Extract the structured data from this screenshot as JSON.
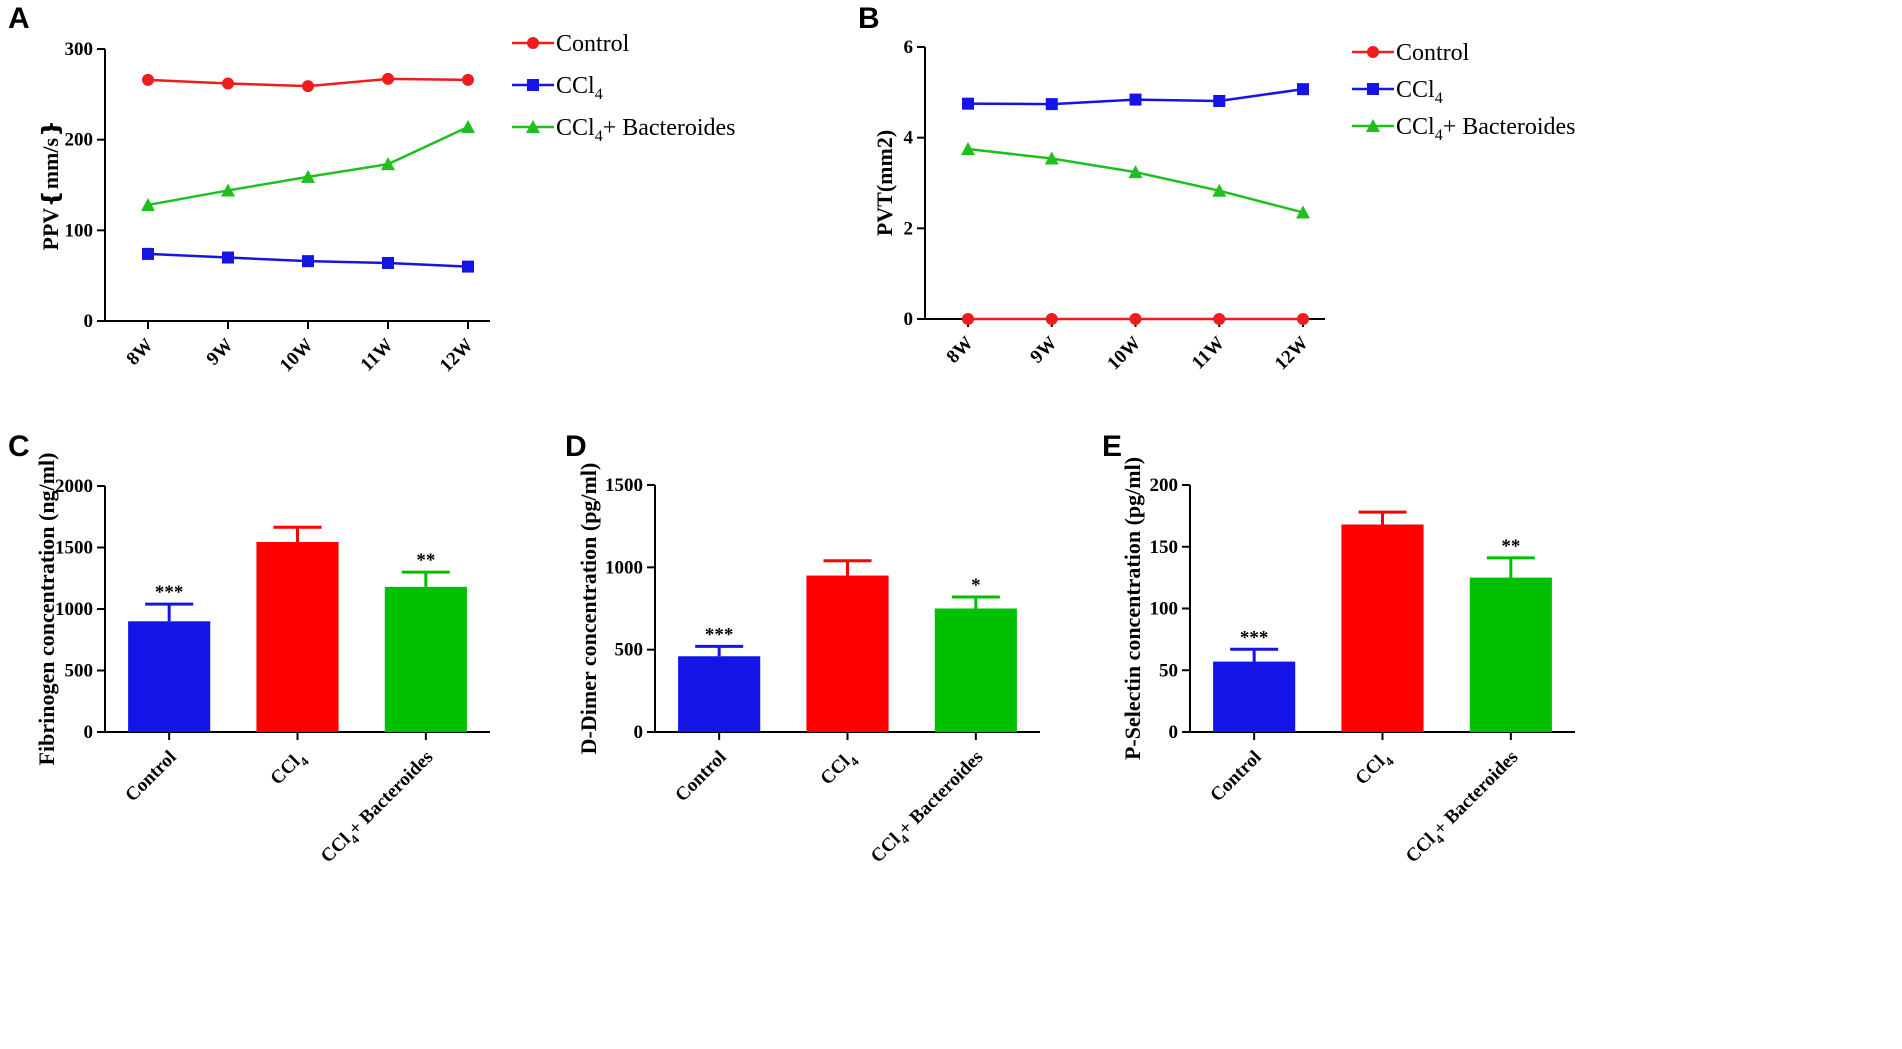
{
  "chart_data": [
    {
      "id": "A",
      "type": "line",
      "panel_label": "A",
      "ylabel": "PPV❴mm/s❵",
      "ylim": [
        0,
        300
      ],
      "yticks": [
        0,
        100,
        200,
        300
      ],
      "categories": [
        "8W",
        "9W",
        "10W",
        "11W",
        "12W"
      ],
      "series": [
        {
          "name": "Control",
          "name_main": "Control",
          "name_sub": "",
          "name_rest": "",
          "color": "#ee1c1c",
          "marker": "circle",
          "values": [
            266,
            262,
            259,
            267,
            266
          ]
        },
        {
          "name": "CCl4",
          "name_main": "CCl",
          "name_sub": "4",
          "name_rest": "",
          "color": "#1414e6",
          "marker": "square",
          "values": [
            74,
            70,
            66,
            64,
            60
          ]
        },
        {
          "name": "CCl4+ Bacteroides",
          "name_main": "CCl",
          "name_sub": "4",
          "name_rest": "+ Bacteroides",
          "color": "#1fbf1f",
          "marker": "triangle",
          "values": [
            128,
            144,
            159,
            173,
            214
          ]
        }
      ]
    },
    {
      "id": "B",
      "type": "line",
      "panel_label": "B",
      "ylabel": "PVT(mm2)",
      "ylim": [
        0,
        6
      ],
      "yticks": [
        0,
        2,
        4,
        6
      ],
      "categories": [
        "8W",
        "9W",
        "10W",
        "11W",
        "12W"
      ],
      "series": [
        {
          "name": "Control",
          "name_main": "Control",
          "name_sub": "",
          "name_rest": "",
          "color": "#ee1c1c",
          "marker": "circle",
          "values": [
            0,
            0,
            0,
            0,
            0
          ]
        },
        {
          "name": "CCl4",
          "name_main": "CCl",
          "name_sub": "4",
          "name_rest": "",
          "color": "#1414e6",
          "marker": "square",
          "values": [
            4.75,
            4.74,
            4.84,
            4.81,
            5.07
          ]
        },
        {
          "name": "CCl4+ Bacteroides",
          "name_main": "CCl",
          "name_sub": "4",
          "name_rest": "+ Bacteroides",
          "color": "#1fbf1f",
          "marker": "triangle",
          "values": [
            3.75,
            3.54,
            3.24,
            2.83,
            2.35
          ]
        }
      ]
    },
    {
      "id": "C",
      "type": "bar",
      "panel_label": "C",
      "ylabel": "Fibrinogen concentration (ng/ml)",
      "ylim": [
        0,
        2000
      ],
      "yticks": [
        0,
        500,
        1000,
        1500,
        2000
      ],
      "bars": [
        {
          "label": "Control",
          "label_main": "Control",
          "label_sub": "",
          "label_rest": "",
          "value": 900,
          "error": 140,
          "sig": "***",
          "color": "#1414e6"
        },
        {
          "label": "CCl4",
          "label_main": "CCl",
          "label_sub": "4",
          "label_rest": "",
          "value": 1545,
          "error": 120,
          "sig": "",
          "color": "#ff0000"
        },
        {
          "label": "CCl4+ Bacteroides",
          "label_main": "CCl",
          "label_sub": "4",
          "label_rest": "+ Bacteroides",
          "value": 1180,
          "error": 120,
          "sig": "**",
          "color": "#00c000"
        }
      ]
    },
    {
      "id": "D",
      "type": "bar",
      "panel_label": "D",
      "ylabel": "D-Dimer concentration (pg/ml)",
      "ylim": [
        0,
        1500
      ],
      "yticks": [
        0,
        500,
        1000,
        1500
      ],
      "bars": [
        {
          "label": "Control",
          "label_main": "Control",
          "label_sub": "",
          "label_rest": "",
          "value": 460,
          "error": 60,
          "sig": "***",
          "color": "#1414e6"
        },
        {
          "label": "CCl4",
          "label_main": "CCl",
          "label_sub": "4",
          "label_rest": "",
          "value": 950,
          "error": 90,
          "sig": "",
          "color": "#ff0000"
        },
        {
          "label": "CCl4+ Bacteroides",
          "label_main": "CCl",
          "label_sub": "4",
          "label_rest": "+ Bacteroides",
          "value": 750,
          "error": 70,
          "sig": "*",
          "color": "#00c000"
        }
      ]
    },
    {
      "id": "E",
      "type": "bar",
      "panel_label": "E",
      "ylabel": "P-Selectin concentration (pg/ml)",
      "ylim": [
        0,
        200
      ],
      "yticks": [
        0,
        50,
        100,
        150,
        200
      ],
      "bars": [
        {
          "label": "Control",
          "label_main": "Control",
          "label_sub": "",
          "label_rest": "",
          "value": 57,
          "error": 10,
          "sig": "***",
          "color": "#1414e6"
        },
        {
          "label": "CCl4",
          "label_main": "CCl",
          "label_sub": "4",
          "label_rest": "",
          "value": 168,
          "error": 10,
          "sig": "",
          "color": "#ff0000"
        },
        {
          "label": "CCl4+ Bacteroides",
          "label_main": "CCl",
          "label_sub": "4",
          "label_rest": "+ Bacteroides",
          "value": 125,
          "error": 16,
          "sig": "**",
          "color": "#00c000"
        }
      ]
    }
  ]
}
